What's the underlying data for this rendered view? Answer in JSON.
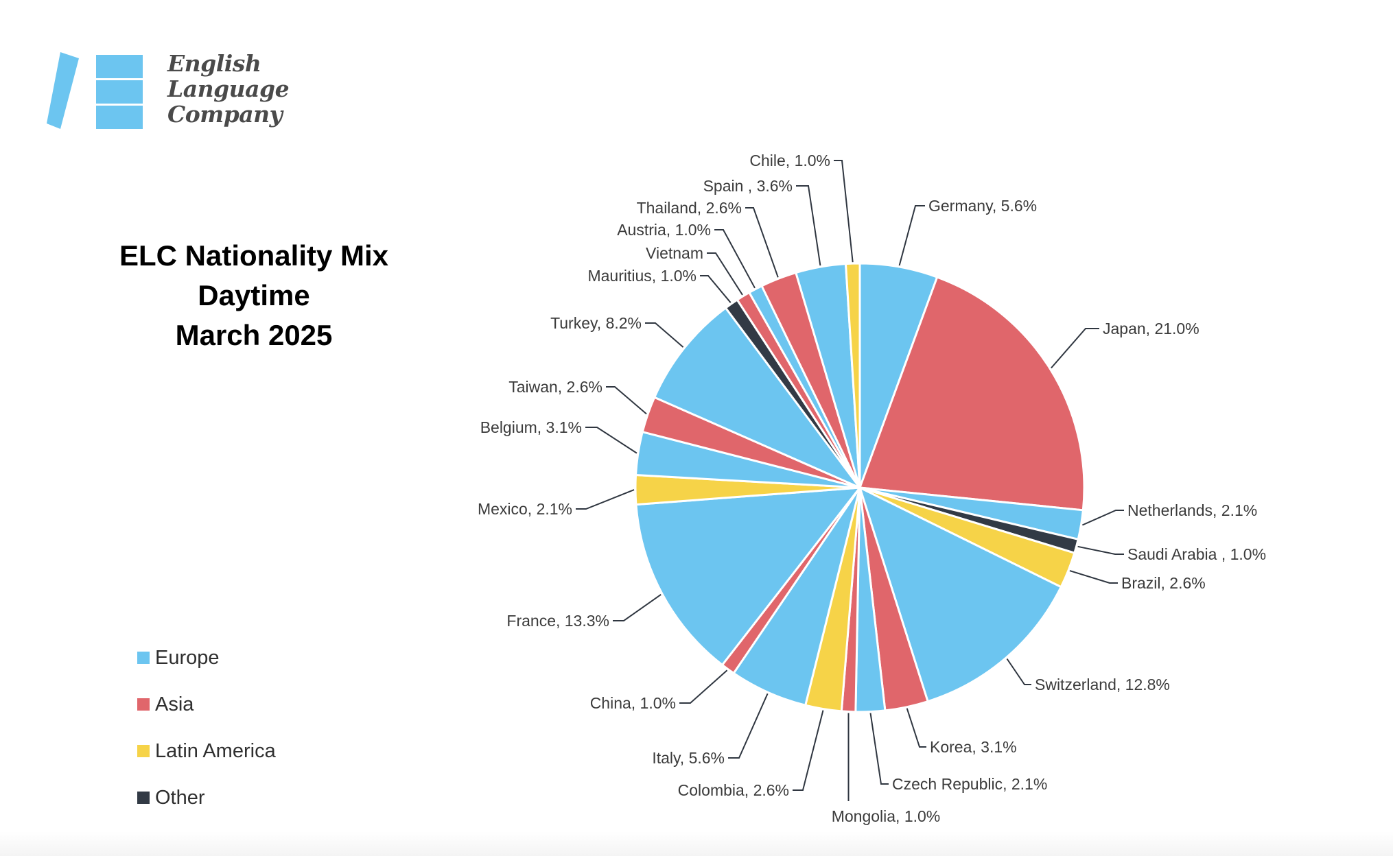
{
  "logo": {
    "text_lines": [
      "English",
      "Language",
      "Company"
    ],
    "color": "#6CC5F0"
  },
  "title": {
    "lines": [
      "ELC Nationality Mix",
      "Daytime",
      "March 2025"
    ]
  },
  "legend": {
    "items": [
      {
        "label": "Europe",
        "color": "#6CC5F0"
      },
      {
        "label": "Asia",
        "color": "#E0666B"
      },
      {
        "label": "Latin America",
        "color": "#F6D348"
      },
      {
        "label": "Other",
        "color": "#323A45"
      }
    ]
  },
  "chart_data": {
    "type": "pie",
    "title": "ELC Nationality Mix Daytime March 2025",
    "unit": "%",
    "start_angle_deg": 0,
    "direction": "clockwise",
    "legend_position": "bottom-left",
    "region_colors": {
      "Europe": "#6CC5F0",
      "Asia": "#E0666B",
      "Latin America": "#F6D348",
      "Other": "#323A45"
    },
    "slices": [
      {
        "name": "Germany",
        "value": 5.6,
        "region": "Europe",
        "label": "Germany, 5.6%"
      },
      {
        "name": "Japan",
        "value": 21.0,
        "region": "Asia",
        "label": "Japan, 21.0%"
      },
      {
        "name": "Netherlands",
        "value": 2.1,
        "region": "Europe",
        "label": "Netherlands, 2.1%"
      },
      {
        "name": "Saudi Arabia",
        "value": 1.0,
        "region": "Other",
        "label": "Saudi Arabia , 1.0%"
      },
      {
        "name": "Brazil",
        "value": 2.6,
        "region": "Latin America",
        "label": "Brazil, 2.6%"
      },
      {
        "name": "Switzerland",
        "value": 12.8,
        "region": "Europe",
        "label": "Switzerland, 12.8%"
      },
      {
        "name": "Korea",
        "value": 3.1,
        "region": "Asia",
        "label": "Korea, 3.1%"
      },
      {
        "name": "Czech Republic",
        "value": 2.1,
        "region": "Europe",
        "label": "Czech Republic, 2.1%"
      },
      {
        "name": "Mongolia",
        "value": 1.0,
        "region": "Asia",
        "label": "Mongolia, 1.0%"
      },
      {
        "name": "Colombia",
        "value": 2.6,
        "region": "Latin America",
        "label": "Colombia, 2.6%"
      },
      {
        "name": "Italy",
        "value": 5.6,
        "region": "Europe",
        "label": "Italy, 5.6%"
      },
      {
        "name": "China",
        "value": 1.0,
        "region": "Asia",
        "label": "China, 1.0%"
      },
      {
        "name": "France",
        "value": 13.3,
        "region": "Europe",
        "label": "France, 13.3%"
      },
      {
        "name": "Mexico",
        "value": 2.1,
        "region": "Latin America",
        "label": "Mexico, 2.1%"
      },
      {
        "name": "Belgium",
        "value": 3.1,
        "region": "Europe",
        "label": "Belgium, 3.1%"
      },
      {
        "name": "Taiwan",
        "value": 2.6,
        "region": "Asia",
        "label": "Taiwan, 2.6%"
      },
      {
        "name": "Turkey",
        "value": 8.2,
        "region": "Europe",
        "label": "Turkey, 8.2%"
      },
      {
        "name": "Mauritius",
        "value": 1.0,
        "region": "Other",
        "label": "Mauritius, 1.0%"
      },
      {
        "name": "Vietnam",
        "value": 1.0,
        "region": "Asia",
        "label": "Vietnam"
      },
      {
        "name": "Austria",
        "value": 1.0,
        "region": "Europe",
        "label": "Austria, 1.0%"
      },
      {
        "name": "Thailand",
        "value": 2.6,
        "region": "Asia",
        "label": "Thailand, 2.6%"
      },
      {
        "name": "Spain",
        "value": 3.6,
        "region": "Europe",
        "label": "Spain , 3.6%"
      },
      {
        "name": "Chile",
        "value": 1.0,
        "region": "Latin America",
        "label": "Chile, 1.0%"
      }
    ]
  }
}
